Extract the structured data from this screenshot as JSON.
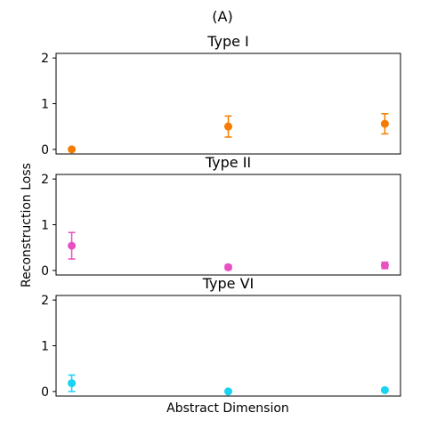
{
  "figure": {
    "title": "(A)",
    "ylabel": "Reconstruction Loss",
    "xlabel": "Abstract Dimension"
  },
  "chart_data": [
    {
      "type": "scatter",
      "title": "Type I",
      "color": "#f57c00",
      "x": [
        1,
        2,
        3
      ],
      "y": [
        0.0,
        0.5,
        0.56
      ],
      "yerr": [
        0.0,
        0.23,
        0.22
      ],
      "ylim": [
        -0.1,
        2.1
      ],
      "yticks": [
        0,
        1,
        2
      ],
      "xticks": [],
      "grid": false
    },
    {
      "type": "scatter",
      "title": "Type II",
      "color": "#e84fc3",
      "x": [
        1,
        2,
        3
      ],
      "y": [
        0.54,
        0.07,
        0.11
      ],
      "yerr": [
        0.29,
        0.05,
        0.07
      ],
      "ylim": [
        -0.1,
        2.1
      ],
      "yticks": [
        0,
        1,
        2
      ],
      "xticks": [],
      "grid": false
    },
    {
      "type": "scatter",
      "title": "Type VI",
      "color": "#19d3f2",
      "x": [
        1,
        2,
        3
      ],
      "y": [
        0.18,
        0.0,
        0.03
      ],
      "yerr": [
        0.18,
        0.0,
        0.0
      ],
      "ylim": [
        -0.1,
        2.1
      ],
      "yticks": [
        0,
        1,
        2
      ],
      "xticks": [],
      "grid": false
    }
  ]
}
